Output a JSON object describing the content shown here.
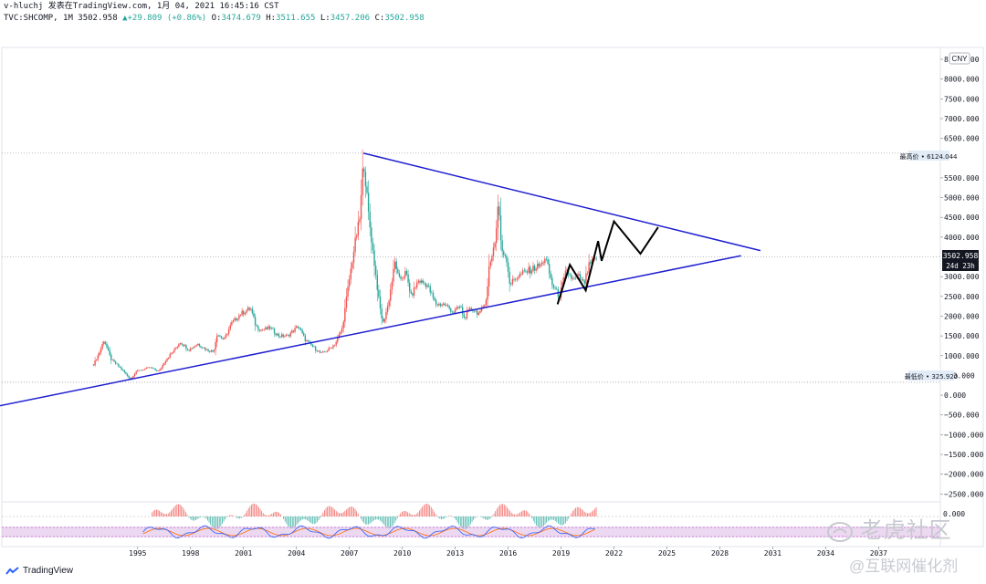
{
  "header": {
    "publish_line": "v-hluchj 发表在TradingView.com, 1月 04, 2021 16:45:16 CST",
    "symbol": "TVC:SHCOMP, 1M",
    "last": "3502.958",
    "change": "▲+29.809 (+0.86%)",
    "open_lbl": "O:",
    "open": "3474.679",
    "high_lbl": "H:",
    "high": "3511.655",
    "low_lbl": "L:",
    "low": "3457.206",
    "close_lbl": "C:",
    "close": "3502.958"
  },
  "currency": "CNY",
  "labels": {
    "max_label": "最高价 • 6124.044",
    "min_label": "最低价 • 325.920",
    "price_badge": "3502.958",
    "countdown_badge": "24d 23h",
    "osc_badge": "0.000"
  },
  "footer": {
    "brand": "TradingView"
  },
  "watermarks": {
    "main": "老虎社区",
    "sub": "@互联网催化剂"
  },
  "colors": {
    "up": "#ef5350",
    "down": "#26a69a",
    "trendline": "#1f1fd1",
    "projection": "#000000",
    "stoch_band": "#e1bee7",
    "macd_line": "#2962ff",
    "signal_line": "#ff6d00"
  },
  "chart_data": {
    "type": "candlestick",
    "symbol": "TVC:SHCOMP",
    "interval": "1M",
    "y_axis": {
      "ticks": [
        -2500,
        -2000,
        -1500,
        -1000,
        -500,
        0,
        500,
        1000,
        1500,
        2000,
        2500,
        3000,
        3500,
        4000,
        4500,
        5000,
        5500,
        6000,
        6500,
        7000,
        7500,
        8000,
        8500
      ],
      "tick_labels": [
        "−2500.000",
        "−2000.000",
        "−1500.000",
        "−1000.000",
        "−500.000",
        "0.000",
        "500.000",
        "1000.000",
        "1500.000",
        "2000.000",
        "2500.000",
        "3000.000",
        "3500.000",
        "4000.000",
        "4500.000",
        "5000.000",
        "5500.000",
        "6000.000",
        "6500.000",
        "7000.000",
        "7500.000",
        "8000.000",
        "8500.000"
      ],
      "range": [
        -2700,
        8800
      ]
    },
    "x_axis": {
      "ticks": [
        1995,
        1998,
        2001,
        2004,
        2007,
        2010,
        2013,
        2016,
        2019,
        2022,
        2025,
        2028,
        2031,
        2034,
        2037
      ],
      "range": [
        1987.3,
        2040.5
      ]
    },
    "price_path": [
      [
        1992.5,
        780
      ],
      [
        1992.8,
        1050
      ],
      [
        1993.1,
        1400
      ],
      [
        1993.5,
        900
      ],
      [
        1994.0,
        700
      ],
      [
        1994.6,
        400
      ],
      [
        1994.9,
        600
      ],
      [
        1995.3,
        650
      ],
      [
        1995.7,
        700
      ],
      [
        1996.2,
        600
      ],
      [
        1996.6,
        900
      ],
      [
        1997.1,
        1150
      ],
      [
        1997.4,
        1350
      ],
      [
        1997.9,
        1150
      ],
      [
        1998.4,
        1300
      ],
      [
        1998.9,
        1150
      ],
      [
        1999.3,
        1100
      ],
      [
        1999.5,
        1550
      ],
      [
        1999.9,
        1400
      ],
      [
        2000.3,
        1800
      ],
      [
        2000.8,
        2050
      ],
      [
        2001.4,
        2200
      ],
      [
        2001.7,
        1750
      ],
      [
        2002.0,
        1650
      ],
      [
        2002.5,
        1700
      ],
      [
        2003.0,
        1500
      ],
      [
        2003.5,
        1500
      ],
      [
        2004.1,
        1750
      ],
      [
        2004.5,
        1400
      ],
      [
        2005.0,
        1200
      ],
      [
        2005.4,
        1050
      ],
      [
        2005.8,
        1150
      ],
      [
        2006.2,
        1300
      ],
      [
        2006.6,
        1700
      ],
      [
        2006.9,
        2650
      ],
      [
        2007.3,
        3800
      ],
      [
        2007.6,
        4500
      ],
      [
        2007.8,
        6000
      ],
      [
        2008.1,
        4500
      ],
      [
        2008.4,
        3400
      ],
      [
        2008.7,
        2300
      ],
      [
        2008.9,
        1800
      ],
      [
        2009.2,
        2300
      ],
      [
        2009.6,
        3400
      ],
      [
        2009.8,
        2900
      ],
      [
        2010.2,
        3100
      ],
      [
        2010.5,
        2500
      ],
      [
        2010.9,
        2900
      ],
      [
        2011.4,
        2800
      ],
      [
        2011.9,
        2300
      ],
      [
        2012.4,
        2300
      ],
      [
        2012.9,
        2100
      ],
      [
        2013.3,
        2250
      ],
      [
        2013.5,
        1950
      ],
      [
        2013.9,
        2200
      ],
      [
        2014.4,
        2050
      ],
      [
        2014.8,
        2500
      ],
      [
        2014.9,
        3200
      ],
      [
        2015.3,
        4000
      ],
      [
        2015.45,
        5000
      ],
      [
        2015.6,
        3700
      ],
      [
        2015.9,
        3500
      ],
      [
        2016.1,
        2800
      ],
      [
        2016.5,
        3000
      ],
      [
        2016.9,
        3100
      ],
      [
        2017.4,
        3200
      ],
      [
        2017.9,
        3300
      ],
      [
        2018.1,
        3500
      ],
      [
        2018.5,
        2800
      ],
      [
        2018.9,
        2500
      ],
      [
        2019.3,
        3150
      ],
      [
        2019.7,
        2900
      ],
      [
        2020.0,
        3000
      ],
      [
        2020.3,
        2800
      ],
      [
        2020.6,
        3300
      ],
      [
        2020.9,
        3400
      ],
      [
        2021.0,
        3502
      ]
    ],
    "extremes": {
      "high": 6124.044,
      "high_year": 2007.8,
      "low": 325.92,
      "low_year": 1992.5
    },
    "trendlines": [
      {
        "name": "upper",
        "from": [
          2007.8,
          6124
        ],
        "to": [
          2030.3,
          3660
        ]
      },
      {
        "name": "lower",
        "from": [
          1986.5,
          -330
        ],
        "to": [
          2029.2,
          3530
        ]
      }
    ],
    "projection": [
      [
        2018.8,
        2300
      ],
      [
        2019.5,
        3300
      ],
      [
        2020.4,
        2650
      ],
      [
        2021.1,
        3900
      ],
      [
        2021.3,
        3400
      ],
      [
        2022.0,
        4400
      ],
      [
        2023.5,
        3580
      ],
      [
        2024.5,
        4250
      ]
    ],
    "current_price": 3502.958,
    "grid": false
  }
}
